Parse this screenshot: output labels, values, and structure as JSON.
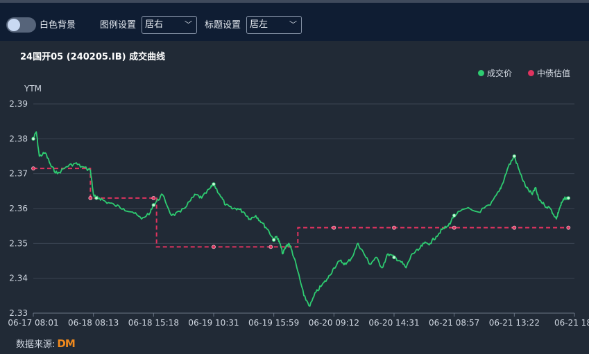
{
  "toolbar": {
    "toggle_label": "白色背景",
    "legend_setting_label": "图例设置",
    "legend_setting_value": "居右",
    "title_setting_label": "标题设置",
    "title_setting_value": "居左"
  },
  "chart_data": {
    "type": "line",
    "title": "24国开05 (240205.IB) 成交曲线",
    "ylabel": "YTM",
    "ylim": [
      2.33,
      2.39
    ],
    "y_ticks": [
      "2.39",
      "2.38",
      "2.37",
      "2.36",
      "2.35",
      "2.34",
      "2.33"
    ],
    "x_ticks": [
      "06-17 08:01",
      "06-18 08:13",
      "06-18 15:18",
      "06-19 10:31",
      "06-19 15:59",
      "06-20 09:12",
      "06-20 14:31",
      "06-21 08:57",
      "06-21 13:22",
      "06-21 18:"
    ],
    "legend_position": "top-right",
    "grid": true,
    "series": [
      {
        "name": "成交价",
        "color": "#2ecc71",
        "x": [
          0,
          0.05,
          0.1,
          0.2,
          0.3,
          0.4,
          0.55,
          0.7,
          0.8,
          0.95,
          1.0,
          1.05,
          1.1,
          1.2,
          1.35,
          1.5,
          1.65,
          1.8,
          1.95,
          2.0,
          2.05,
          2.15,
          2.3,
          2.45,
          2.6,
          2.7,
          2.8,
          2.95,
          3.0,
          3.1,
          3.2,
          3.3,
          3.4,
          3.5,
          3.6,
          3.7,
          3.8,
          3.9,
          4.0,
          4.05,
          4.1,
          4.15,
          4.2,
          4.25,
          4.3,
          4.4,
          4.5,
          4.6,
          4.7,
          4.8,
          4.9,
          5.0,
          5.1,
          5.2,
          5.3,
          5.4,
          5.5,
          5.6,
          5.7,
          5.8,
          5.9,
          6.0,
          6.1,
          6.2,
          6.3,
          6.4,
          6.5,
          6.6,
          6.7,
          6.8,
          6.9,
          7.0,
          7.2,
          7.4,
          7.6,
          7.75,
          7.8,
          7.9,
          8.0,
          8.1,
          8.2,
          8.3,
          8.35,
          8.4,
          8.5,
          8.6,
          8.7,
          8.75,
          8.8,
          8.85,
          8.9
        ],
        "values": [
          2.38,
          2.382,
          2.375,
          2.376,
          2.372,
          2.37,
          2.372,
          2.373,
          2.372,
          2.371,
          2.364,
          2.363,
          2.363,
          2.362,
          2.361,
          2.36,
          2.359,
          2.357,
          2.359,
          2.361,
          2.362,
          2.364,
          2.358,
          2.359,
          2.362,
          2.364,
          2.363,
          2.366,
          2.367,
          2.364,
          2.361,
          2.36,
          2.36,
          2.359,
          2.357,
          2.358,
          2.356,
          2.354,
          2.351,
          2.352,
          2.35,
          2.347,
          2.349,
          2.35,
          2.348,
          2.342,
          2.335,
          2.332,
          2.336,
          2.338,
          2.34,
          2.343,
          2.345,
          2.344,
          2.346,
          2.35,
          2.347,
          2.344,
          2.346,
          2.343,
          2.347,
          2.346,
          2.345,
          2.343,
          2.347,
          2.348,
          2.35,
          2.35,
          2.352,
          2.354,
          2.355,
          2.358,
          2.36,
          2.359,
          2.361,
          2.365,
          2.367,
          2.372,
          2.375,
          2.37,
          2.366,
          2.364,
          2.366,
          2.363,
          2.361,
          2.36,
          2.357,
          2.36,
          2.362,
          2.363,
          2.363
        ]
      },
      {
        "name": "中债估值",
        "color": "#e0335f",
        "x": [
          0,
          0.9,
          0.95,
          2.0,
          2.05,
          3.0,
          3.95,
          4.2,
          4.25,
          4.4,
          5.0,
          6.0,
          7.0,
          8.0,
          8.9
        ],
        "values": [
          2.3715,
          2.3715,
          2.363,
          2.363,
          2.349,
          2.349,
          2.349,
          2.349,
          2.349,
          2.3545,
          2.3545,
          2.3545,
          2.3545,
          2.3545,
          2.3545
        ]
      }
    ]
  }
}
